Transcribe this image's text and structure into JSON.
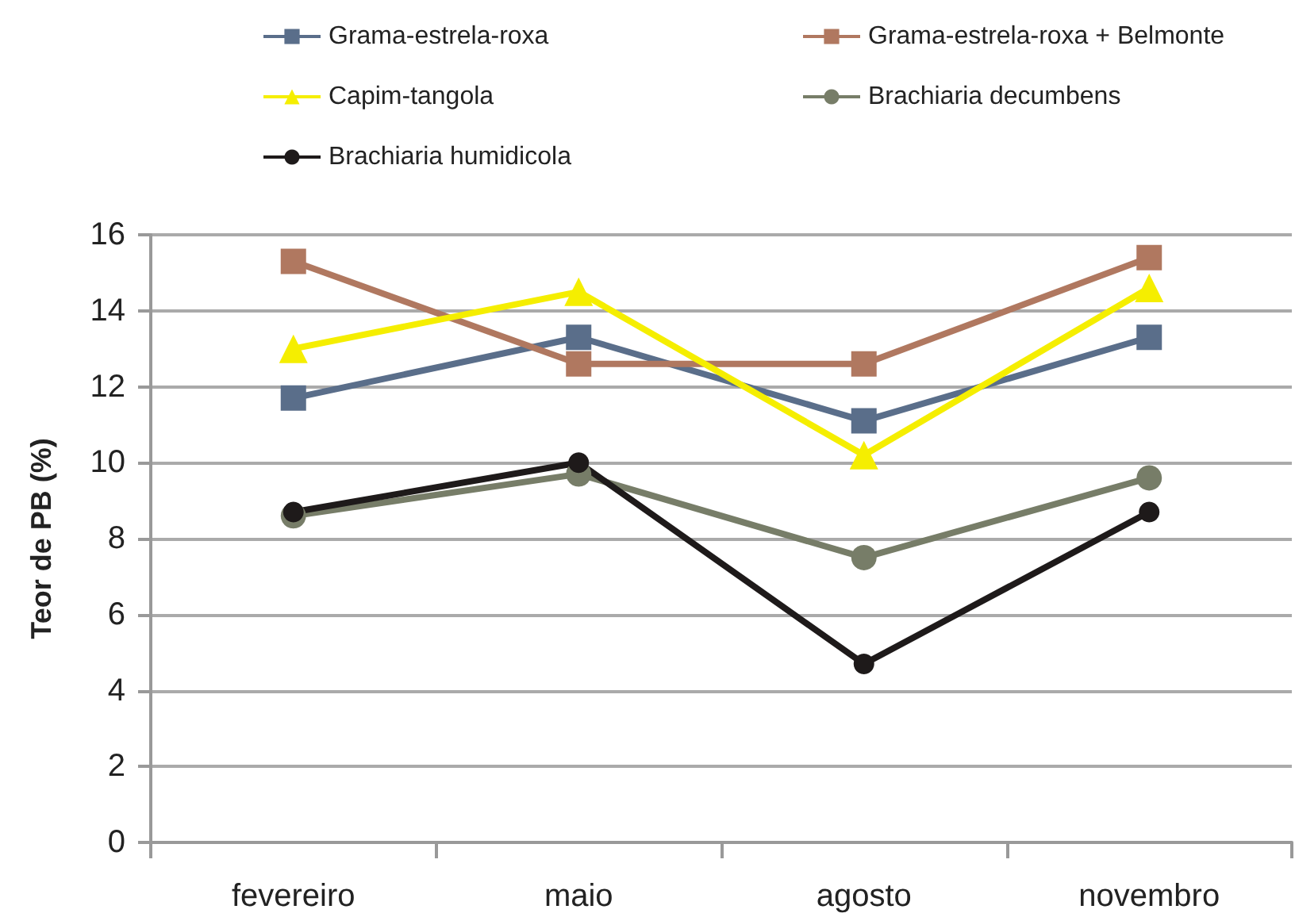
{
  "chart_data": {
    "type": "line",
    "ylabel": "Teor de PB (%)",
    "categories": [
      "fevereiro",
      "maio",
      "agosto",
      "novembro"
    ],
    "series": [
      {
        "name": "Grama-estrela-roxa",
        "color": "#5a6e8a",
        "marker": "square",
        "values": [
          11.7,
          13.3,
          11.1,
          13.3
        ]
      },
      {
        "name": "Grama-estrela-roxa + Belmonte",
        "color": "#b07860",
        "marker": "square",
        "values": [
          15.3,
          12.6,
          12.6,
          15.4
        ]
      },
      {
        "name": "Capim-tangola",
        "color": "#f5ee00",
        "marker": "triangle",
        "values": [
          13.0,
          14.5,
          10.2,
          14.6
        ]
      },
      {
        "name": "Brachiaria decumbens",
        "color": "#777d68",
        "marker": "circle",
        "values": [
          8.6,
          9.7,
          7.5,
          9.6
        ]
      },
      {
        "name": "Brachiaria humidicola",
        "color": "#1e1a1a",
        "marker": "circle",
        "values": [
          8.7,
          10.0,
          4.7,
          8.7
        ]
      }
    ],
    "ylim": [
      0,
      16
    ],
    "yticks": [
      0,
      2,
      4,
      6,
      8,
      10,
      12,
      14,
      16
    ],
    "grid": "y",
    "legend": "top",
    "line_style": "solid"
  }
}
